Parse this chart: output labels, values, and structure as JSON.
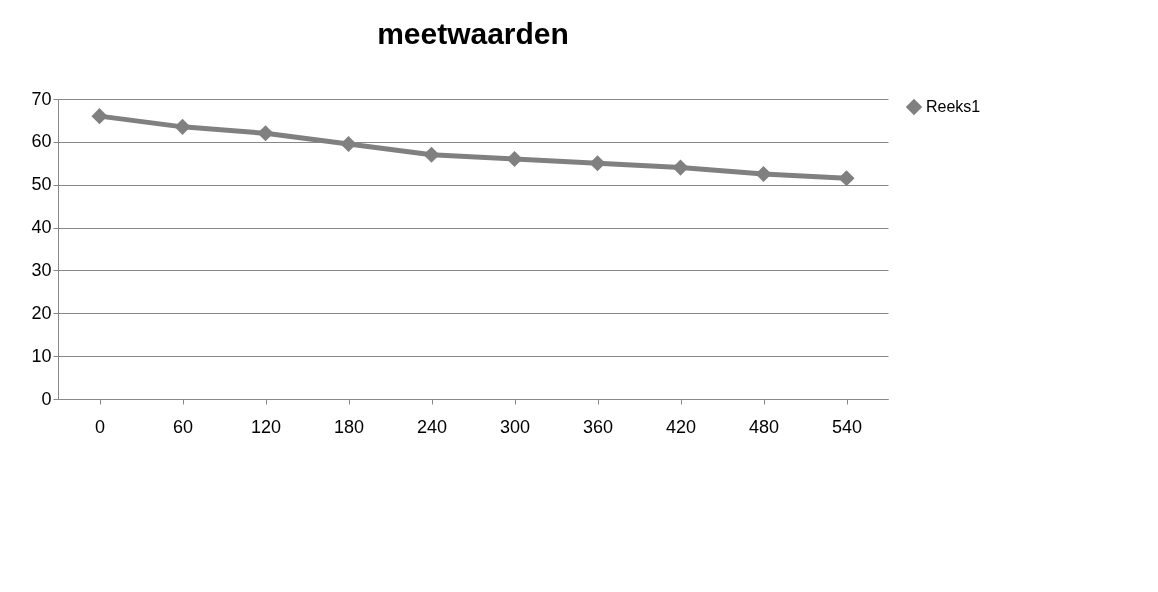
{
  "chart_data": {
    "type": "line",
    "title": "meetwaarden",
    "categories": [
      "0",
      "60",
      "120",
      "180",
      "240",
      "300",
      "360",
      "420",
      "480",
      "540"
    ],
    "series": [
      {
        "name": "Reeks1",
        "color": "#808080",
        "values": [
          66,
          63.5,
          62,
          59.5,
          57,
          56,
          55,
          54,
          52.5,
          51.5
        ]
      }
    ],
    "ylim": [
      0,
      70
    ],
    "yticks": [
      0,
      10,
      20,
      30,
      40,
      50,
      60,
      70
    ],
    "grid": "y",
    "legend": "right",
    "marker": "diamond"
  }
}
